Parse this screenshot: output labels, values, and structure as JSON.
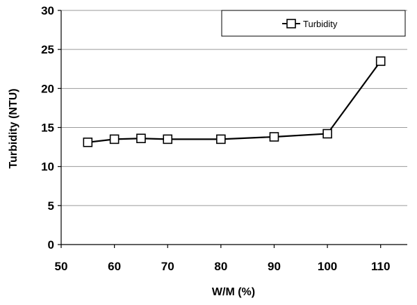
{
  "chart_data": {
    "type": "line",
    "title": "",
    "xlabel": "W/M (%)",
    "ylabel": "Turbidity (NTU)",
    "xlim": [
      50,
      115
    ],
    "ylim": [
      0,
      30
    ],
    "x_ticks": [
      50,
      60,
      70,
      80,
      90,
      100,
      110
    ],
    "y_ticks": [
      0,
      5,
      10,
      15,
      20,
      25,
      30
    ],
    "grid": "horizontal",
    "legend_position": "top-right",
    "marker": "open-square",
    "series": [
      {
        "name": "Turbidity",
        "color": "#000000",
        "x": [
          55,
          60,
          65,
          70,
          80,
          90,
          100,
          110
        ],
        "y": [
          13.1,
          13.5,
          13.6,
          13.5,
          13.5,
          13.8,
          14.2,
          23.5
        ]
      }
    ]
  }
}
